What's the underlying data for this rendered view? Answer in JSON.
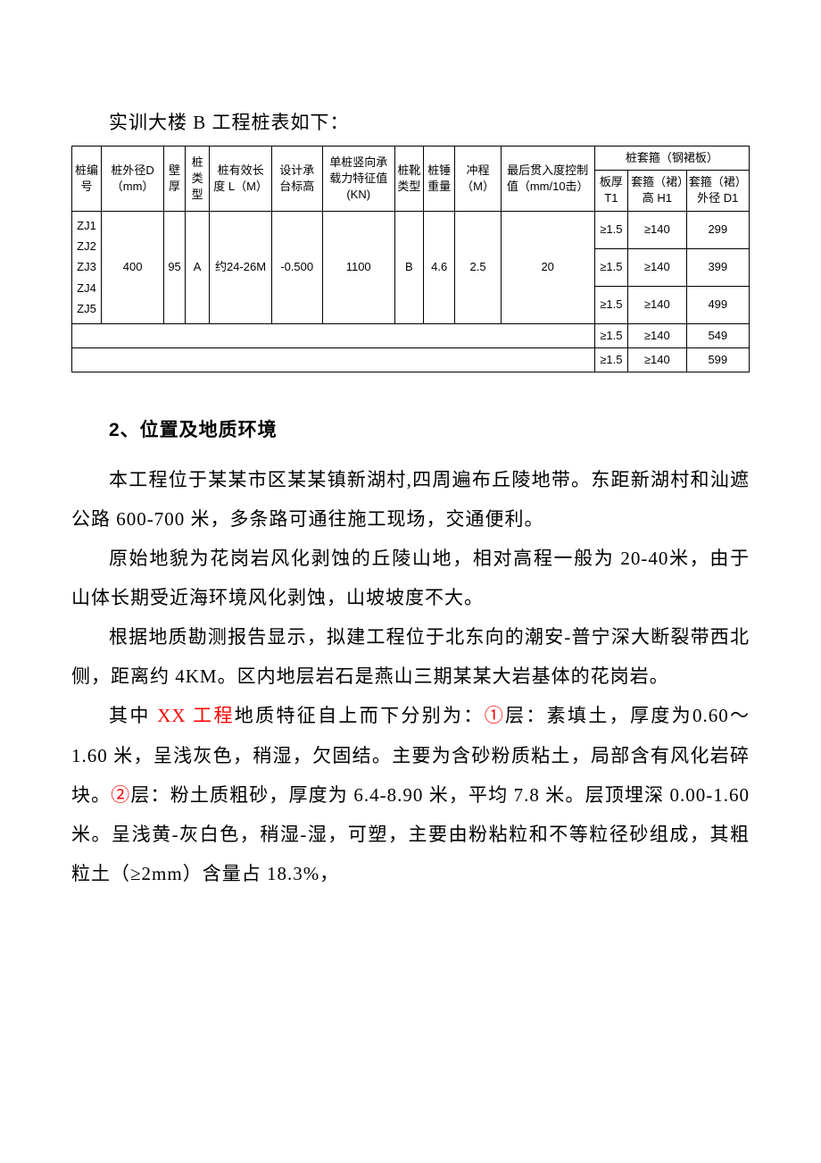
{
  "intro": "实训大楼 B 工程桩表如下：",
  "table": {
    "header_group": "桩套箍（钢裙板）",
    "headers": {
      "c0": "桩编号",
      "c1": "桩外径D（mm）",
      "c2": "壁厚",
      "c3": "桩类型",
      "c4": "桩有效长度 L（M）",
      "c5": "设计承台标高",
      "c6": "单桩竖向承载力特征值 (KN)",
      "c7": "桩靴类型",
      "c8": "桩锤重量",
      "c9": "冲程（M）",
      "c10": "最后贯入度控制值（mm/10击）",
      "c11": "板厚 T1",
      "c12": "套箍（裙）高 H1",
      "c13": "套箍（裙）外径 D1"
    },
    "merged": {
      "pile_ids": "ZJ1\nZJ2\nZJ3\nZJ4\nZJ5",
      "d": "400",
      "wall": "95",
      "type": "A",
      "length": "约24-26M",
      "elev": "-0.500",
      "capacity": "1100",
      "boot": "B",
      "hammer": "4.6",
      "stroke": "2.5",
      "penetration": "20"
    },
    "rows_right": [
      {
        "t1": "≥1.5",
        "h1": "≥140",
        "d1": "299"
      },
      {
        "t1": "≥1.5",
        "h1": "≥140",
        "d1": "399"
      },
      {
        "t1": "≥1.5",
        "h1": "≥140",
        "d1": "499"
      },
      {
        "t1": "≥1.5",
        "h1": "≥140",
        "d1": "549"
      },
      {
        "t1": "≥1.5",
        "h1": "≥140",
        "d1": "599"
      }
    ]
  },
  "section2": {
    "heading": "2、位置及地质环境",
    "p1": "本工程位于某某市区某某镇新湖村,四周遍布丘陵地带。东距新湖村和汕遮公路 600-700 米，多条路可通往施工现场，交通便利。",
    "p2": "原始地貌为花岗岩风化剥蚀的丘陵山地，相对高程一般为 20-40米，由于山体长期受近海环境风化剥蚀，山坡坡度不大。",
    "p3": "根据地质勘测报告显示，拟建工程位于北东向的潮安-普宁深大断裂带西北侧，距离约 4KM。区内地层岩石是燕山三期某某大岩基体的花岗岩。",
    "p4_a": "其中 ",
    "p4_red1": "XX 工程",
    "p4_b": "地质特征自上而下分别为：",
    "p4_red2": "①",
    "p4_c": "层：素填土，厚度为0.60～1.60 米，呈浅灰色，稍湿，欠固结。主要为含砂粉质粘土，局部含有风化岩碎块。",
    "p4_red3": "②",
    "p4_d": "层：粉土质粗砂，厚度为 6.4-8.90 米，平均 7.8 米。层顶埋深 0.00-1.60 米。呈浅黄-灰白色，稍湿-湿，可塑，主要由粉粘粒和不等粒径砂组成，其粗粒土（≥2mm）含量占 18.3%，"
  },
  "colors": {
    "text": "#000000",
    "red": "#ff0000",
    "bg": "#ffffff",
    "border": "#000000"
  }
}
